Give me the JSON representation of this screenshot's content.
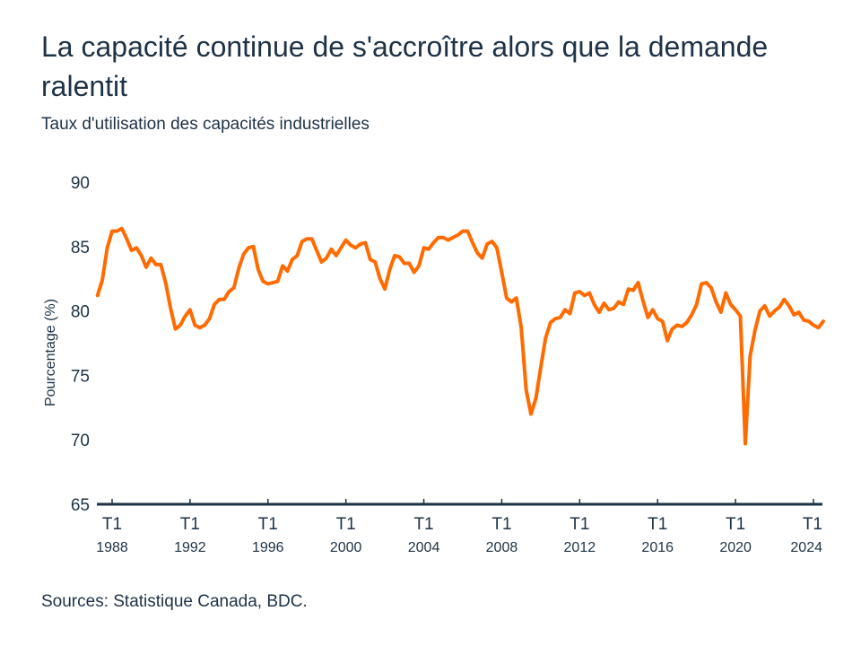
{
  "header": {
    "title": "La capacité continue de s'accroître alors que la demande ralentit",
    "subtitle": "Taux d'utilisation des capacités industrielles"
  },
  "footer": {
    "source": "Sources: Statistique Canada, BDC."
  },
  "colors": {
    "line": "#ff6b00",
    "axis": "#1e3246",
    "text": "#1e3246"
  },
  "chart_data": {
    "type": "line",
    "title": "La capacité continue de s'accroître alors que la demande ralentit",
    "subtitle": "Taux d'utilisation des capacités industrielles",
    "xlabel": "",
    "ylabel": "Pourcentage (%)",
    "ylim": [
      65,
      90
    ],
    "yticks": [
      "90",
      "85",
      "80",
      "75",
      "70",
      "65"
    ],
    "ytick_values": [
      90,
      85,
      80,
      75,
      70,
      65
    ],
    "xticks": [
      {
        "quarter": "T1",
        "year": "1988"
      },
      {
        "quarter": "T1",
        "year": "1992"
      },
      {
        "quarter": "T1",
        "year": "1996"
      },
      {
        "quarter": "T1",
        "year": "2000"
      },
      {
        "quarter": "T1",
        "year": "2004"
      },
      {
        "quarter": "T1",
        "year": "2008"
      },
      {
        "quarter": "T1",
        "year": "2012"
      },
      {
        "quarter": "T1",
        "year": "2016"
      },
      {
        "quarter": "T1",
        "year": "2020"
      },
      {
        "quarter": "T1",
        "year": "2024"
      }
    ],
    "grid": false,
    "x_start": "1987-T2",
    "x_end": "2024-T2",
    "series": [
      {
        "name": "Taux d'utilisation des capacités industrielles",
        "values": [
          81.2,
          82.4,
          84.9,
          86.2,
          86.2,
          86.4,
          85.6,
          84.7,
          84.9,
          84.3,
          83.4,
          84.1,
          83.6,
          83.6,
          82.2,
          80.2,
          78.6,
          78.9,
          79.6,
          80.1,
          78.9,
          78.7,
          78.9,
          79.4,
          80.5,
          80.9,
          80.9,
          81.5,
          81.8,
          83.3,
          84.4,
          84.9,
          85.0,
          83.2,
          82.3,
          82.1,
          82.2,
          82.3,
          83.5,
          83.1,
          84.0,
          84.3,
          85.4,
          85.6,
          85.6,
          84.7,
          83.8,
          84.1,
          84.8,
          84.3,
          84.9,
          85.5,
          85.1,
          84.9,
          85.2,
          85.3,
          84.0,
          83.8,
          82.5,
          81.7,
          83.2,
          84.3,
          84.2,
          83.7,
          83.7,
          83.0,
          83.5,
          84.9,
          84.8,
          85.3,
          85.7,
          85.7,
          85.5,
          85.7,
          85.9,
          86.2,
          86.2,
          85.3,
          84.5,
          84.1,
          85.2,
          85.4,
          84.9,
          83.0,
          81.0,
          80.7,
          81.0,
          78.7,
          73.9,
          72.0,
          73.2,
          75.6,
          77.9,
          79.1,
          79.4,
          79.5,
          80.1,
          79.8,
          81.4,
          81.5,
          81.2,
          81.4,
          80.5,
          79.9,
          80.6,
          80.1,
          80.2,
          80.7,
          80.5,
          81.7,
          81.6,
          82.2,
          80.8,
          79.5,
          80.1,
          79.4,
          79.2,
          77.7,
          78.6,
          78.9,
          78.8,
          79.1,
          79.7,
          80.5,
          82.1,
          82.2,
          81.8,
          80.7,
          79.9,
          81.4,
          80.5,
          80.1,
          79.6,
          69.7,
          76.5,
          78.5,
          80.0,
          80.4,
          79.6,
          80.0,
          80.3,
          80.9,
          80.4,
          79.7,
          79.9,
          79.3,
          79.2,
          78.9,
          78.7,
          79.2
        ]
      }
    ]
  }
}
